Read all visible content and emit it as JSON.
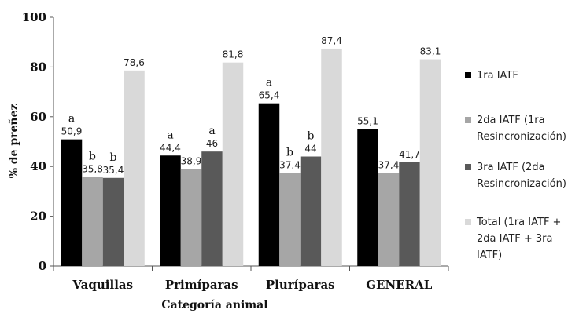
{
  "chart_data": {
    "type": "bar",
    "title": "",
    "xlabel": "Categoría animal",
    "ylabel": "% de preñez",
    "ylim": [
      0,
      100
    ],
    "yticks": [
      "0",
      "20",
      "40",
      "60",
      "80",
      "100"
    ],
    "categories": [
      "Vaquillas",
      "Primíparas",
      "Pluríparas",
      "GENERAL"
    ],
    "grid": false,
    "legend_position": "right",
    "series": [
      {
        "name": "1ra IATF",
        "color": "#000000",
        "values": [
          50.9,
          44.4,
          65.4,
          55.1
        ],
        "labels": [
          "50,9",
          "44,4",
          "65,4",
          "55,1"
        ],
        "letters": [
          "a",
          "a",
          "a",
          ""
        ]
      },
      {
        "name": "2da IATF (1ra Resincronización)",
        "legend_lines": [
          "2da IATF (1ra",
          "Resincronización)"
        ],
        "color": "#a6a6a6",
        "values": [
          35.8,
          38.9,
          37.4,
          37.4
        ],
        "labels": [
          "35,8",
          "38,9",
          "37,4",
          "37,4"
        ],
        "letters": [
          "b",
          "",
          "b",
          ""
        ]
      },
      {
        "name": "3ra IATF (2da Resincronización)",
        "legend_lines": [
          "3ra IATF (2da",
          "Resincronización)"
        ],
        "color": "#595959",
        "values": [
          35.4,
          46,
          44,
          41.7
        ],
        "labels": [
          "35,4",
          "46",
          "44",
          "41,7"
        ],
        "letters": [
          "b",
          "a",
          "b",
          ""
        ]
      },
      {
        "name": "Total (1ra IATF + 2da IATF + 3ra IATF)",
        "legend_lines": [
          "Total (1ra IATF +",
          "2da IATF + 3ra",
          "IATF)"
        ],
        "color": "#d9d9d9",
        "values": [
          78.6,
          81.8,
          87.4,
          83.1
        ],
        "labels": [
          "78,6",
          "81,8",
          "87,4",
          "83,1"
        ],
        "letters": [
          "",
          "",
          "",
          ""
        ]
      }
    ]
  }
}
